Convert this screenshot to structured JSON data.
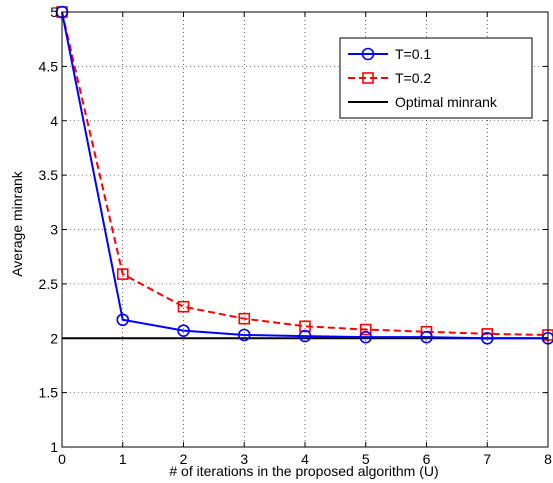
{
  "chart_data": {
    "type": "line",
    "xlabel": "# of iterations in the proposed algorithm (U)",
    "ylabel": "Average minrank",
    "xlim": [
      0,
      8
    ],
    "ylim": [
      1,
      5
    ],
    "xticks": [
      0,
      1,
      2,
      3,
      4,
      5,
      6,
      7,
      8
    ],
    "yticks": [
      1,
      1.5,
      2,
      2.5,
      3,
      3.5,
      4,
      4.5,
      5
    ],
    "xtick_labels": [
      "0",
      "1",
      "2",
      "3",
      "4",
      "5",
      "6",
      "7",
      "8"
    ],
    "ytick_labels": [
      "1",
      "1.5",
      "2",
      "2.5",
      "3",
      "3.5",
      "4",
      "4.5",
      "5"
    ],
    "grid": true,
    "legend_position": "top-right",
    "x": [
      0,
      1,
      2,
      3,
      4,
      5,
      6,
      7,
      8
    ],
    "series": [
      {
        "name": "T=0.1",
        "values": [
          5,
          2.17,
          2.07,
          2.03,
          2.02,
          2.01,
          2.01,
          2.0,
          2.0
        ],
        "color": "#0000ff",
        "line_style": "solid",
        "marker": "circle"
      },
      {
        "name": "T=0.2",
        "values": [
          5,
          2.59,
          2.29,
          2.18,
          2.11,
          2.08,
          2.06,
          2.04,
          2.03
        ],
        "color": "#ff0000",
        "line_style": "dashed",
        "marker": "square"
      },
      {
        "name": "Optimal minrank",
        "values": [
          2,
          2,
          2,
          2,
          2,
          2,
          2,
          2,
          2
        ],
        "color": "#000000",
        "line_style": "solid",
        "marker": "none"
      }
    ]
  }
}
